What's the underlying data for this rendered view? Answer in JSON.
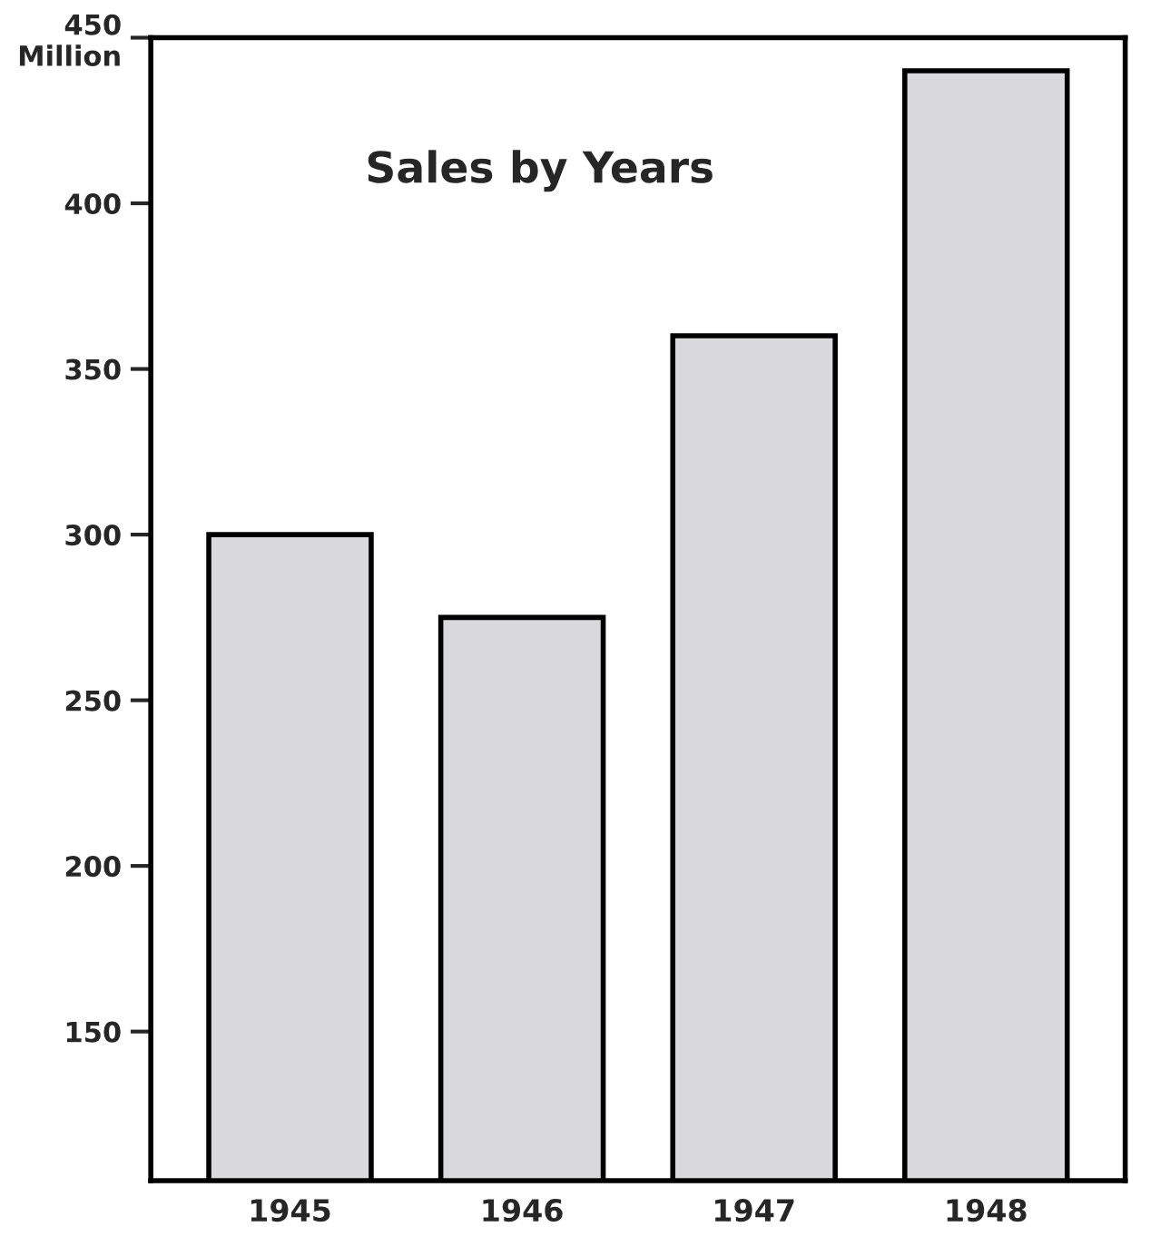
{
  "chart_data": {
    "type": "bar",
    "title": "Sales by Years",
    "categories": [
      "1945",
      "1946",
      "1947",
      "1948"
    ],
    "values": [
      300,
      275,
      360,
      440
    ],
    "color": "#d9d9dd",
    "ylim": [
      105,
      450
    ],
    "yticks": [
      150,
      200,
      250,
      300,
      350,
      400,
      {
        "value": 450,
        "label": "450\nMillion"
      }
    ],
    "grid": false
  }
}
